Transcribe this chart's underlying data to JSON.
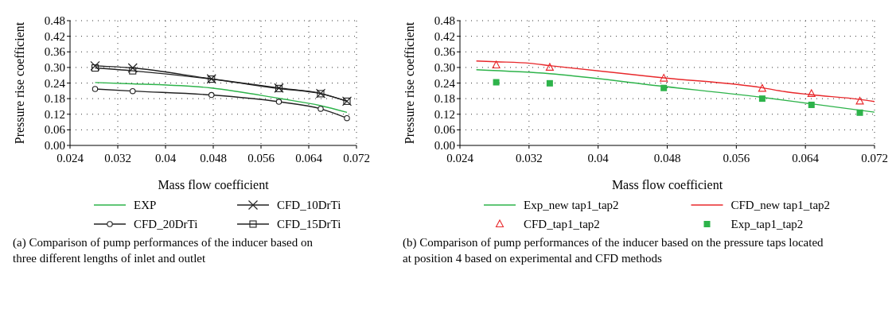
{
  "chart_data": [
    {
      "type": "line",
      "xlabel": "Mass flow coefficient",
      "ylabel": "Pressure rise coefficient",
      "xlim": [
        0.024,
        0.072
      ],
      "xticks": [
        0.024,
        0.032,
        0.04,
        0.048,
        0.056,
        0.064,
        0.072
      ],
      "ylim": [
        0,
        0.48
      ],
      "yticks": [
        {
          "value": 0,
          "label": "0.00"
        },
        {
          "value": 0.06,
          "label": "0.06"
        },
        {
          "value": 0.12,
          "label": "0.12"
        },
        {
          "value": 0.18,
          "label": "0.18"
        },
        {
          "value": 0.24,
          "label": "0.24"
        },
        {
          "value": 0.3,
          "label": "0.30"
        },
        {
          "value": 0.36,
          "label": "0.36"
        },
        {
          "value": 0.42,
          "label": "0.42"
        },
        {
          "value": 0.48,
          "label": "0.48"
        }
      ],
      "grid": true,
      "legend": "bottom",
      "x": [
        0.0282,
        0.0345,
        0.0477,
        0.059,
        0.066,
        0.0704
      ],
      "series": [
        {
          "name": "EXP",
          "color": "#2db34a",
          "marker": "none",
          "values": [
            0.242,
            0.237,
            0.221,
            0.181,
            0.153,
            0.127
          ]
        },
        {
          "name": "CFD_10DrTi",
          "color": "#222222",
          "marker": "cross",
          "values": [
            0.306,
            0.298,
            0.256,
            0.221,
            0.2,
            0.17
          ]
        },
        {
          "name": "CFD_20DrTi",
          "color": "#222222",
          "marker": "circle",
          "values": [
            0.217,
            0.209,
            0.194,
            0.168,
            0.141,
            0.105
          ]
        },
        {
          "name": "CFD_15DrTi",
          "color": "#222222",
          "marker": "square",
          "values": [
            0.298,
            0.287,
            0.255,
            0.219,
            0.199,
            0.17
          ]
        }
      ],
      "annotations": [
        "(a)  Comparison of pump performances of the inducer based on three different lengths of inlet and outlet"
      ]
    },
    {
      "type": "line",
      "xlabel": "Mass flow coefficient",
      "ylabel": "Pressure rise coefficient",
      "xlim": [
        0.024,
        0.072
      ],
      "xticks": [
        0.024,
        0.032,
        0.04,
        0.048,
        0.056,
        0.064,
        0.072
      ],
      "ylim": [
        0,
        0.48
      ],
      "yticks": [
        {
          "value": 0,
          "label": "0.00"
        },
        {
          "value": 0.06,
          "label": "0.06"
        },
        {
          "value": 0.12,
          "label": "0.12"
        },
        {
          "value": 0.18,
          "label": "0.18"
        },
        {
          "value": 0.24,
          "label": "0.24"
        },
        {
          "value": 0.3,
          "label": "0.30"
        },
        {
          "value": 0.36,
          "label": "0.36"
        },
        {
          "value": 0.42,
          "label": "0.42"
        },
        {
          "value": 0.48,
          "label": "0.48"
        }
      ],
      "grid": true,
      "legend": "bottom",
      "series": [
        {
          "name": "Exp_new tap1_tap2",
          "type": "line",
          "color": "#2db34a",
          "marker": "none",
          "x": [
            0.0259,
            0.0344,
            0.0476,
            0.059,
            0.0647,
            0.072
          ],
          "values": [
            0.291,
            0.276,
            0.227,
            0.185,
            0.16,
            0.128
          ]
        },
        {
          "name": "CFD_new tap1_tap2",
          "type": "line",
          "color": "#e8282b",
          "marker": "none",
          "x": [
            0.0259,
            0.0282,
            0.0321,
            0.0344,
            0.0476,
            0.059,
            0.0616,
            0.0647,
            0.0703,
            0.072
          ],
          "values": [
            0.325,
            0.322,
            0.316,
            0.307,
            0.26,
            0.222,
            0.207,
            0.195,
            0.177,
            0.169
          ]
        },
        {
          "name": "CFD_tap1_tap2",
          "type": "scatter",
          "color": "#e8282b",
          "marker": "triangle",
          "x": [
            0.0282,
            0.0344,
            0.0476,
            0.059,
            0.0647,
            0.0703
          ],
          "values": [
            0.309,
            0.3,
            0.258,
            0.219,
            0.199,
            0.17
          ]
        },
        {
          "name": "Exp_tap1_tap2",
          "type": "scatter",
          "color": "#2db34a",
          "marker": "square",
          "x": [
            0.0282,
            0.0344,
            0.0476,
            0.059,
            0.0647,
            0.0703
          ],
          "values": [
            0.243,
            0.239,
            0.221,
            0.18,
            0.156,
            0.126
          ]
        }
      ],
      "annotations": [
        "(b)  Comparison of pump performances of the inducer based on the pressure taps located at position 4 based on experimental and CFD methods"
      ]
    }
  ]
}
